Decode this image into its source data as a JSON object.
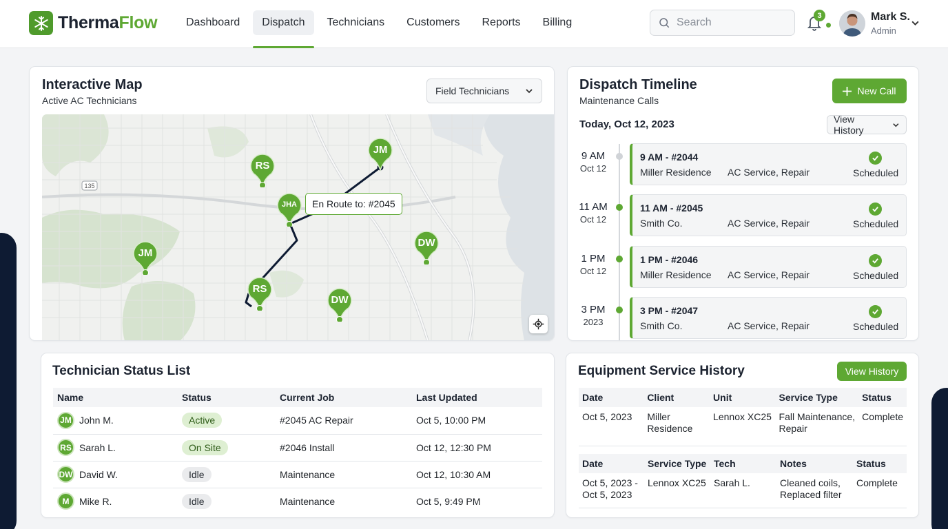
{
  "app": {
    "brand_part1": "Therma",
    "brand_part2": "Flow",
    "nav": [
      {
        "label": "Dashboard",
        "active": false
      },
      {
        "label": "Dispatch",
        "active": true
      },
      {
        "label": "Technicians",
        "active": false
      },
      {
        "label": "Customers",
        "active": false
      },
      {
        "label": "Reports",
        "active": false
      },
      {
        "label": "Billing",
        "active": false
      }
    ],
    "search_placeholder": "Search",
    "notifications_count": "3",
    "user": {
      "name": "Mark S.",
      "role": "Admin"
    },
    "accent_color": "#5ea833"
  },
  "map_card": {
    "title": "Interactive Map",
    "subtitle": "Active AC Technicians",
    "filter_label": "Field Technicians",
    "tooltip": "En Route to: #2045",
    "pins": [
      "JM",
      "RS",
      "JHA",
      "JM",
      "DW",
      "RS",
      "DW"
    ]
  },
  "timeline": {
    "title": "Dispatch Timeline",
    "subtitle": "Maintenance Calls",
    "new_call_label": "New Call",
    "date_label": "Today, Oct 12, 2023",
    "history_label": "View History",
    "items": [
      {
        "time": "9 AM",
        "date": "Oct 12",
        "heading": "9 AM - #2044",
        "client": "Miller Residence",
        "service": "AC Service, Repair",
        "status": "Scheduled"
      },
      {
        "time": "11 AM",
        "date": "Oct 12",
        "heading": "11 AM - #2045",
        "client": "Smith Co.",
        "service": "AC Service, Repair",
        "status": "Scheduled"
      },
      {
        "time": "1 PM",
        "date": "Oct 12",
        "heading": "1 PM - #2046",
        "client": "Miller Residence",
        "service": "AC Service, Repair",
        "status": "Scheduled"
      },
      {
        "time": "3 PM",
        "date": "2023",
        "heading": "3 PM - #2047",
        "client": "Smith Co.",
        "service": "AC Service, Repair",
        "status": "Scheduled"
      }
    ]
  },
  "status_list": {
    "title": "Technician Status List",
    "columns": [
      "Name",
      "Status",
      "Current Job",
      "Last Updated"
    ],
    "rows": [
      {
        "initials": "JM",
        "name": "John M.",
        "status": "Active",
        "job": "#2045 AC Repair",
        "updated": "Oct 5, 10:00 PM"
      },
      {
        "initials": "RS",
        "name": "Sarah L.",
        "status": "On Site",
        "job": "#2046 Install",
        "updated": "Oct 12, 12:30 PM"
      },
      {
        "initials": "DW",
        "name": "David W.",
        "status": "Idle",
        "job": "Maintenance",
        "updated": "Oct 12, 10:30 AM"
      },
      {
        "initials": "M",
        "name": "Mike R.",
        "status": "Idle",
        "job": "Maintenance",
        "updated": "Oct 5, 9:49 PM"
      }
    ]
  },
  "equipment": {
    "title": "Equipment Service History",
    "history_button": "View History",
    "table1": {
      "columns": [
        "Date",
        "Client",
        "Unit",
        "Service Type",
        "Status"
      ],
      "row": {
        "date": "Oct 5, 2023",
        "client_line1": "Miller",
        "client_line2": "Residence",
        "unit": "Lennox XC25",
        "type_line1": "Fall Maintenance,",
        "type_line2": "Repair",
        "status": "Complete"
      }
    },
    "table2": {
      "columns": [
        "Date",
        "Service Type",
        "Tech",
        "Notes",
        "Status"
      ],
      "row": {
        "date_line1": "Oct 5, 2023 -",
        "date_line2": "Oct 5, 2023",
        "type": "Lennox XC25",
        "tech": "Sarah L.",
        "notes_line1": "Cleaned coils,",
        "notes_line2": "Replaced filter",
        "status": "Complete"
      }
    }
  }
}
